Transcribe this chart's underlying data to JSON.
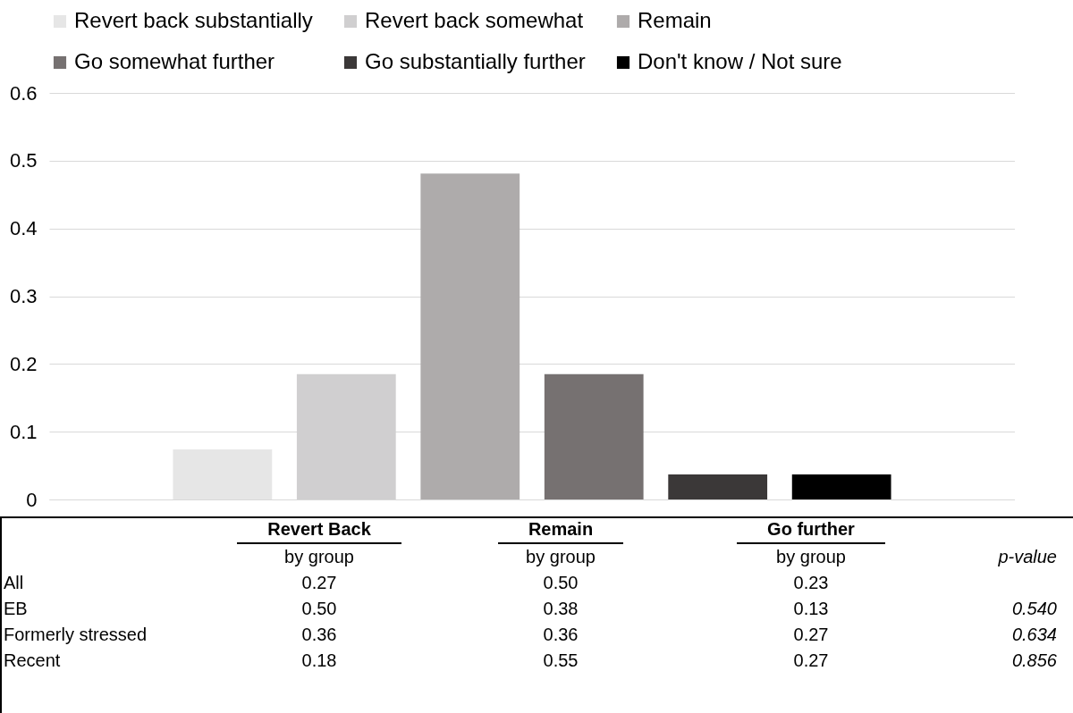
{
  "chart_data": [
    {
      "type": "bar",
      "categories": [
        null
      ],
      "series": [
        {
          "name": "Revert back substantially",
          "color": "#e6e6e6",
          "values": [
            0.074
          ]
        },
        {
          "name": "Revert back somewhat",
          "color": "#d0cfd0",
          "values": [
            0.185
          ]
        },
        {
          "name": "Remain",
          "color": "#aeabab",
          "values": [
            0.481
          ]
        },
        {
          "name": "Go somewhat further",
          "color": "#767171",
          "values": [
            0.185
          ]
        },
        {
          "name": "Go substantially further",
          "color": "#3b3838",
          "values": [
            0.037
          ]
        },
        {
          "name": "Don't know / Not sure",
          "color": "#000000",
          "values": [
            0.037
          ]
        }
      ],
      "ylim": [
        0,
        0.6
      ],
      "yticks": [
        0,
        0.1,
        0.2,
        0.3,
        0.4,
        0.5,
        0.6
      ],
      "grid": "y",
      "legend": "top"
    },
    {
      "type": "other",
      "categories": [
        "Revert Back",
        "Remain",
        "Go further",
        null
      ],
      "annotations": [
        "by group",
        "by group",
        "by group",
        "p-value"
      ],
      "y_categories": [
        "All",
        "EB",
        "Formerly stressed",
        "Recent"
      ],
      "cell_labels": [
        [
          "0.27",
          "0.50",
          "0.23",
          null
        ],
        [
          "0.50",
          "0.38",
          "0.13",
          "0.540"
        ],
        [
          "0.36",
          "0.36",
          "0.27",
          "0.634"
        ],
        [
          "0.18",
          "0.55",
          "0.27",
          "0.856"
        ]
      ]
    }
  ]
}
